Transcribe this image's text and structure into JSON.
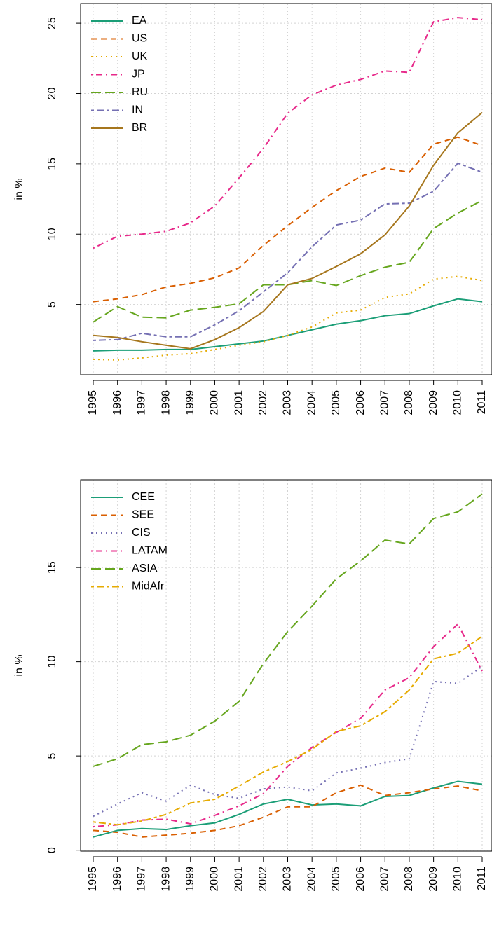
{
  "chart_data": [
    {
      "type": "line",
      "ylabel": "in %",
      "grid": true,
      "legend": "topleft",
      "categories": [
        "1995",
        "1996",
        "1997",
        "1998",
        "1999",
        "2000",
        "2001",
        "2002",
        "2003",
        "2004",
        "2005",
        "2006",
        "2007",
        "2008",
        "2009",
        "2010",
        "2011"
      ],
      "ylim": [
        0,
        26.4
      ],
      "yticks": [
        5,
        10,
        15,
        20,
        25
      ],
      "series": [
        {
          "name": "EA",
          "color": "#1b9e77",
          "linestyle": "solid",
          "values": [
            1.7,
            1.75,
            1.75,
            1.8,
            1.8,
            2.0,
            2.2,
            2.4,
            2.8,
            3.2,
            3.6,
            3.85,
            4.2,
            4.35,
            4.9,
            5.4,
            5.2
          ]
        },
        {
          "name": "US",
          "color": "#d95f02",
          "linestyle": "dashed",
          "values": [
            5.2,
            5.4,
            5.7,
            6.25,
            6.5,
            6.9,
            7.6,
            9.2,
            10.6,
            11.9,
            13.1,
            14.1,
            14.7,
            14.4,
            16.4,
            16.9,
            16.3
          ]
        },
        {
          "name": "UK",
          "color": "#e6ab02",
          "linestyle": "dotted",
          "values": [
            1.1,
            1.05,
            1.2,
            1.4,
            1.5,
            1.8,
            2.1,
            2.35,
            2.8,
            3.4,
            4.4,
            4.6,
            5.5,
            5.75,
            6.8,
            7.0,
            6.7
          ]
        },
        {
          "name": "JP",
          "color": "#e7298a",
          "linestyle": "dotdash",
          "values": [
            9.0,
            9.85,
            10.0,
            10.2,
            10.8,
            12.0,
            14.0,
            16.1,
            18.6,
            19.9,
            20.6,
            21.0,
            21.6,
            21.5,
            25.1,
            25.4,
            25.25
          ]
        },
        {
          "name": "RU",
          "color": "#66a61e",
          "linestyle": "longdash",
          "values": [
            3.75,
            4.85,
            4.1,
            4.05,
            4.6,
            4.8,
            5.05,
            6.4,
            6.4,
            6.7,
            6.35,
            7.05,
            7.65,
            8.0,
            10.4,
            11.5,
            12.4
          ]
        },
        {
          "name": "IN",
          "color": "#7570b3",
          "linestyle": "twodash",
          "values": [
            2.45,
            2.5,
            2.95,
            2.7,
            2.7,
            3.55,
            4.55,
            5.9,
            7.25,
            9.1,
            10.65,
            11.0,
            12.15,
            12.2,
            13.05,
            15.05,
            14.4
          ]
        },
        {
          "name": "BR",
          "color": "#a6761d",
          "linestyle": "solid",
          "values": [
            2.8,
            2.65,
            2.35,
            2.1,
            1.85,
            2.5,
            3.35,
            4.5,
            6.4,
            6.85,
            7.7,
            8.6,
            9.95,
            12.0,
            14.9,
            17.2,
            18.65
          ]
        }
      ]
    },
    {
      "type": "line",
      "ylabel": "in %",
      "grid": true,
      "legend": "topleft",
      "categories": [
        "1995",
        "1996",
        "1997",
        "1998",
        "1999",
        "2000",
        "2001",
        "2002",
        "2003",
        "2004",
        "2005",
        "2006",
        "2007",
        "2008",
        "2009",
        "2010",
        "2011"
      ],
      "ylim": [
        -0.05,
        19.65
      ],
      "yticks": [
        0,
        5,
        10,
        15
      ],
      "series": [
        {
          "name": "CEE",
          "color": "#1b9e77",
          "linestyle": "solid",
          "values": [
            0.7,
            1.05,
            1.15,
            1.1,
            1.3,
            1.45,
            1.9,
            2.45,
            2.7,
            2.4,
            2.45,
            2.35,
            2.85,
            2.9,
            3.3,
            3.65,
            3.5
          ]
        },
        {
          "name": "SEE",
          "color": "#d95f02",
          "linestyle": "dashed",
          "values": [
            1.05,
            0.95,
            0.7,
            0.8,
            0.9,
            1.05,
            1.3,
            1.75,
            2.3,
            2.3,
            3.05,
            3.45,
            2.9,
            3.05,
            3.25,
            3.4,
            3.15
          ]
        },
        {
          "name": "CIS",
          "color": "#7570b3",
          "linestyle": "dotted",
          "values": [
            1.8,
            2.45,
            3.05,
            2.6,
            3.45,
            2.95,
            2.75,
            3.25,
            3.35,
            3.15,
            4.1,
            4.35,
            4.65,
            4.85,
            8.95,
            8.85,
            9.75
          ]
        },
        {
          "name": "LATAM",
          "color": "#e7298a",
          "linestyle": "dotdash",
          "values": [
            1.25,
            1.35,
            1.6,
            1.65,
            1.4,
            1.85,
            2.35,
            3.0,
            4.45,
            5.45,
            6.25,
            7.0,
            8.5,
            9.15,
            10.8,
            12.0,
            9.5
          ]
        },
        {
          "name": "ASIA",
          "color": "#66a61e",
          "linestyle": "longdash",
          "values": [
            4.45,
            4.85,
            5.6,
            5.75,
            6.1,
            6.85,
            7.9,
            9.9,
            11.6,
            12.95,
            14.4,
            15.35,
            16.45,
            16.25,
            17.6,
            17.95,
            18.9
          ]
        },
        {
          "name": "MidAfr",
          "color": "#e6ab02",
          "linestyle": "twodash",
          "values": [
            1.5,
            1.35,
            1.55,
            1.9,
            2.5,
            2.7,
            3.4,
            4.15,
            4.7,
            5.35,
            6.3,
            6.6,
            7.35,
            8.5,
            10.15,
            10.45,
            11.35
          ]
        }
      ]
    }
  ]
}
